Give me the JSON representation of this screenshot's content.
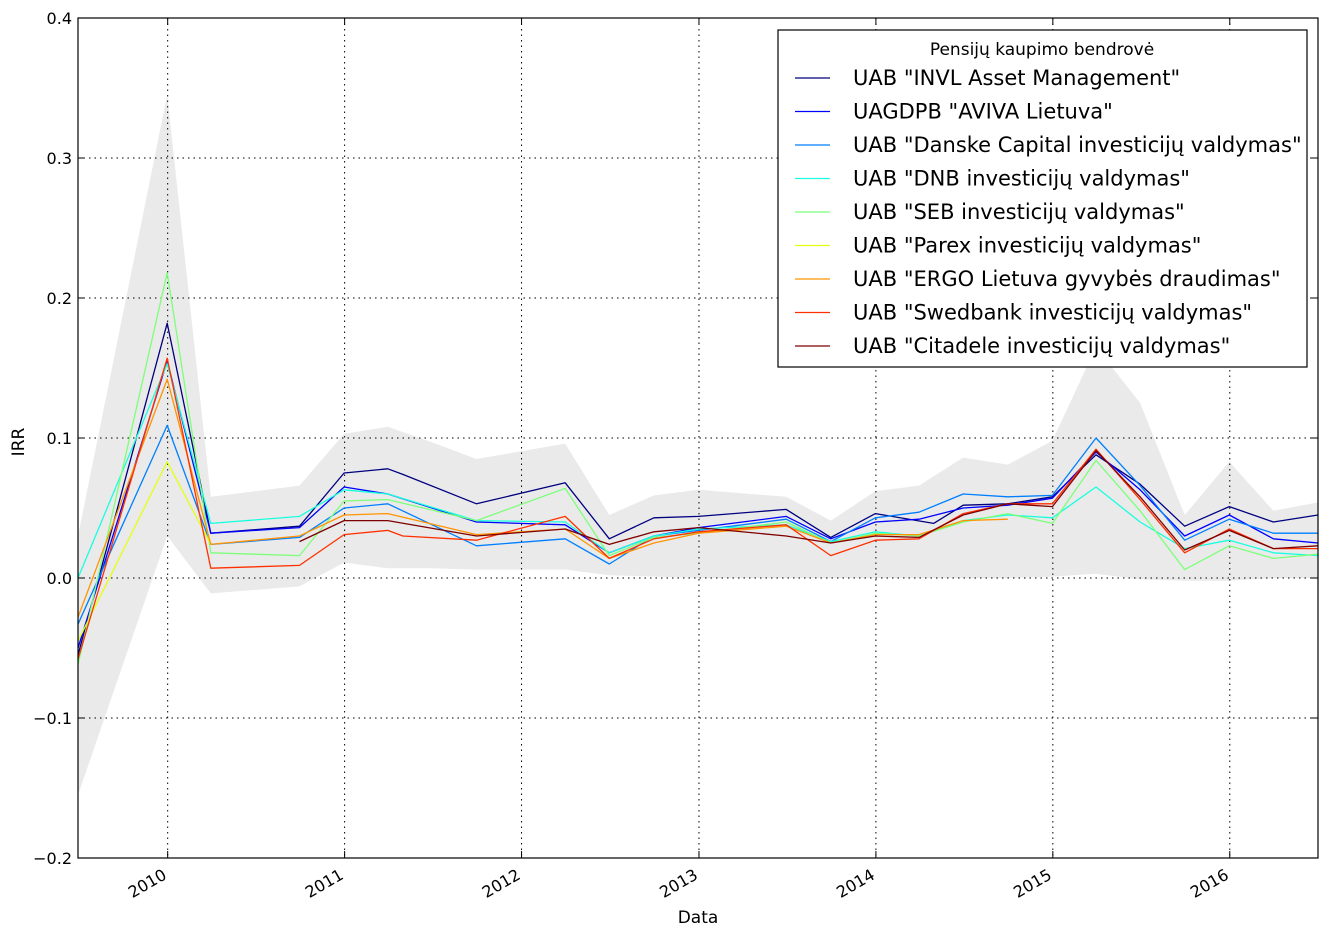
{
  "chart_data": {
    "type": "line",
    "xlabel": "Data",
    "ylabel": "IRR",
    "xlim": [
      "2009-06-30",
      "2016-07-01"
    ],
    "ylim": [
      -0.2,
      0.4
    ],
    "x_ticks": [
      "2010",
      "2011",
      "2012",
      "2013",
      "2014",
      "2015",
      "2016"
    ],
    "y_ticks": [
      -0.2,
      -0.1,
      0.0,
      0.1,
      0.2,
      0.3,
      0.4
    ],
    "y_tick_labels": [
      "−0.2",
      "−0.1",
      "0.0",
      "0.1",
      "0.2",
      "0.3",
      "0.4"
    ],
    "grid": true,
    "legend_title": "Pensijų kaupimo bendrovė",
    "legend_position": "top-right",
    "band": {
      "x": [
        "2009-06-30",
        "2009-12-31",
        "2010-03-31",
        "2010-09-30",
        "2010-12-31",
        "2011-03-31",
        "2011-06-30",
        "2011-09-30",
        "2012-03-31",
        "2012-06-30",
        "2012-09-30",
        "2012-12-31",
        "2013-06-30",
        "2013-09-30",
        "2013-12-31",
        "2014-03-31",
        "2014-06-30",
        "2014-09-30",
        "2014-12-31",
        "2015-03-31",
        "2015-06-30",
        "2015-09-30",
        "2015-12-31",
        "2016-03-31",
        "2016-07-01"
      ],
      "upper": [
        0.03,
        0.345,
        0.058,
        0.066,
        0.103,
        0.108,
        0.097,
        0.085,
        0.096,
        0.045,
        0.059,
        0.063,
        0.058,
        0.041,
        0.062,
        0.066,
        0.086,
        0.081,
        0.098,
        0.165,
        0.125,
        0.045,
        0.083,
        0.048,
        0.054
      ],
      "lower": [
        -0.155,
        0.03,
        -0.011,
        -0.006,
        0.011,
        0.007,
        0.007,
        0.006,
        0.006,
        0.002,
        0.001,
        0.0,
        0.0,
        0.0,
        0.0,
        0.0,
        0.0,
        0.0,
        0.001,
        0.003,
        -0.001,
        -0.002,
        -0.002,
        0.0,
        0.0
      ]
    },
    "series": [
      {
        "name": "UAB \"INVL Asset Management\"",
        "color": "#00007f",
        "x": [
          "2009-06-30",
          "2009-12-31",
          "2010-03-31",
          "2010-09-30",
          "2010-12-31",
          "2011-03-31",
          "2011-05-01",
          "2011-09-30",
          "2012-03-31",
          "2012-06-30",
          "2012-09-30",
          "2012-12-31",
          "2013-06-30",
          "2013-09-30",
          "2013-12-31",
          "2014-04-30",
          "2014-06-30",
          "2014-09-30",
          "2014-12-31",
          "2015-03-31",
          "2015-06-30",
          "2015-09-30",
          "2015-12-31",
          "2016-03-31",
          "2016-07-01"
        ],
        "y": [
          -0.055,
          0.182,
          0.032,
          0.037,
          0.075,
          0.078,
          0.074,
          0.053,
          0.068,
          0.028,
          0.043,
          0.044,
          0.049,
          0.029,
          0.046,
          0.039,
          0.052,
          0.053,
          0.058,
          0.088,
          0.067,
          0.037,
          0.051,
          0.04,
          0.045
        ]
      },
      {
        "name": "UAGDPB \"AVIVA Lietuva\"",
        "color": "#0000ff",
        "x": [
          "2009-06-30",
          "2009-12-31",
          "2010-03-31",
          "2010-09-30",
          "2010-12-31",
          "2011-03-31",
          "2011-09-30",
          "2012-03-31",
          "2012-06-30",
          "2012-09-30",
          "2012-12-31",
          "2013-06-30",
          "2013-09-30",
          "2013-12-31",
          "2014-03-31",
          "2014-06-30",
          "2014-09-30",
          "2014-12-31",
          "2015-03-31",
          "2015-06-30",
          "2015-09-30",
          "2015-12-31",
          "2016-03-31",
          "2016-07-01"
        ],
        "y": [
          -0.05,
          0.155,
          0.032,
          0.036,
          0.065,
          0.06,
          0.04,
          0.038,
          0.018,
          0.03,
          0.036,
          0.044,
          0.028,
          0.04,
          0.042,
          0.05,
          0.052,
          0.057,
          0.09,
          0.063,
          0.03,
          0.045,
          0.028,
          0.025
        ]
      },
      {
        "name": "UAB \"Danske Capital investicijų valdymas\"",
        "color": "#007fff",
        "x": [
          "2009-06-30",
          "2009-12-31",
          "2010-03-31",
          "2010-09-30",
          "2010-12-31",
          "2011-03-31",
          "2011-09-30",
          "2012-03-31",
          "2012-06-30",
          "2012-09-30",
          "2012-12-31",
          "2013-06-30",
          "2013-09-30",
          "2013-12-31",
          "2014-03-31",
          "2014-06-30",
          "2014-09-30",
          "2014-12-31",
          "2015-03-31",
          "2015-06-30",
          "2015-09-30",
          "2015-12-31",
          "2016-03-31",
          "2016-07-01"
        ],
        "y": [
          -0.033,
          0.109,
          0.024,
          0.029,
          0.05,
          0.053,
          0.023,
          0.028,
          0.01,
          0.03,
          0.034,
          0.042,
          0.026,
          0.043,
          0.047,
          0.06,
          0.058,
          0.059,
          0.1,
          0.066,
          0.027,
          0.042,
          0.032,
          0.032
        ]
      },
      {
        "name": "UAB \"DNB investicijų valdymas\"",
        "color": "#19ffde",
        "x": [
          "2009-06-30",
          "2009-12-31",
          "2010-03-31",
          "2010-09-30",
          "2010-12-31",
          "2011-03-31",
          "2011-09-30",
          "2012-03-31",
          "2012-06-30",
          "2012-09-30",
          "2012-12-31",
          "2013-06-30",
          "2013-09-30",
          "2013-12-31",
          "2014-03-31",
          "2014-06-30",
          "2014-09-30",
          "2014-12-31",
          "2015-03-31",
          "2015-06-30",
          "2015-09-30",
          "2015-12-31",
          "2016-03-31",
          "2016-07-01"
        ],
        "y": [
          0.0,
          0.153,
          0.039,
          0.044,
          0.063,
          0.06,
          0.041,
          0.04,
          0.018,
          0.03,
          0.035,
          0.038,
          0.026,
          0.033,
          0.03,
          0.041,
          0.045,
          0.043,
          0.065,
          0.04,
          0.021,
          0.027,
          0.018,
          0.016
        ]
      },
      {
        "name": "UAB \"SEB investicijų valdymas\"",
        "color": "#7dff7a",
        "x": [
          "2009-06-30",
          "2009-12-31",
          "2010-03-31",
          "2010-09-30",
          "2010-12-31",
          "2011-03-31",
          "2011-09-30",
          "2012-03-31",
          "2012-06-30",
          "2012-09-30",
          "2012-12-31",
          "2013-06-30",
          "2013-09-30",
          "2013-12-31",
          "2014-03-31",
          "2014-06-30",
          "2014-09-30",
          "2014-12-31",
          "2015-03-31",
          "2015-06-30",
          "2015-09-30",
          "2015-12-31",
          "2016-03-31",
          "2016-07-01"
        ],
        "y": [
          -0.062,
          0.218,
          0.018,
          0.016,
          0.055,
          0.056,
          0.041,
          0.064,
          0.016,
          0.029,
          0.032,
          0.04,
          0.025,
          0.032,
          0.03,
          0.04,
          0.046,
          0.039,
          0.084,
          0.048,
          0.006,
          0.023,
          0.014,
          0.017
        ]
      },
      {
        "name": "UAB \"Parex investicijų valdymas\"",
        "color": "#e4ff12",
        "x": [
          "2009-06-30",
          "2009-12-31",
          "2010-03-31"
        ],
        "y": [
          -0.045,
          0.083,
          0.024
        ]
      },
      {
        "name": "UAB \"ERGO Lietuva gyvybės draudimas\"",
        "color": "#ff9400",
        "x": [
          "2009-06-30",
          "2009-12-31",
          "2010-03-31",
          "2010-09-30",
          "2010-12-31",
          "2011-03-31",
          "2011-09-30",
          "2012-03-31",
          "2012-06-30",
          "2012-09-30",
          "2012-12-31",
          "2013-06-30",
          "2013-09-30",
          "2013-12-31",
          "2014-03-31",
          "2014-06-30",
          "2014-09-30"
        ],
        "y": [
          -0.028,
          0.142,
          0.024,
          0.03,
          0.045,
          0.046,
          0.031,
          0.035,
          0.014,
          0.025,
          0.032,
          0.037,
          0.025,
          0.031,
          0.031,
          0.041,
          0.042
        ]
      },
      {
        "name": "UAB \"Swedbank investicijų valdymas\"",
        "color": "#ff3000",
        "x": [
          "2009-06-30",
          "2009-12-31",
          "2010-03-31",
          "2010-09-30",
          "2010-12-31",
          "2011-03-31",
          "2011-05-01",
          "2011-09-30",
          "2012-03-31",
          "2012-06-30",
          "2012-09-30",
          "2012-12-31",
          "2013-06-30",
          "2013-09-30",
          "2013-12-31",
          "2014-03-31",
          "2014-06-30",
          "2014-09-30",
          "2014-12-31",
          "2015-03-31",
          "2015-06-30",
          "2015-09-30",
          "2015-12-31",
          "2016-03-31",
          "2016-07-01"
        ],
        "y": [
          -0.058,
          0.157,
          0.007,
          0.009,
          0.031,
          0.034,
          0.03,
          0.027,
          0.044,
          0.014,
          0.028,
          0.033,
          0.038,
          0.016,
          0.027,
          0.028,
          0.046,
          0.053,
          0.053,
          0.092,
          0.056,
          0.018,
          0.035,
          0.021,
          0.021
        ]
      },
      {
        "name": "UAB \"Citadele investicijų valdymas\"",
        "color": "#7f0000",
        "x": [
          "2010-09-30",
          "2010-12-31",
          "2011-03-31",
          "2011-09-30",
          "2012-03-31",
          "2012-06-30",
          "2012-09-30",
          "2012-12-31",
          "2013-06-30",
          "2013-09-30",
          "2013-12-31",
          "2014-03-31",
          "2014-06-30",
          "2014-09-30",
          "2014-12-31",
          "2015-03-31",
          "2015-06-30",
          "2015-09-30",
          "2015-12-31",
          "2016-03-31",
          "2016-07-01"
        ],
        "y": [
          0.026,
          0.041,
          0.041,
          0.03,
          0.035,
          0.024,
          0.033,
          0.036,
          0.03,
          0.025,
          0.03,
          0.029,
          0.045,
          0.053,
          0.051,
          0.091,
          0.058,
          0.02,
          0.034,
          0.021,
          0.023
        ]
      }
    ]
  }
}
